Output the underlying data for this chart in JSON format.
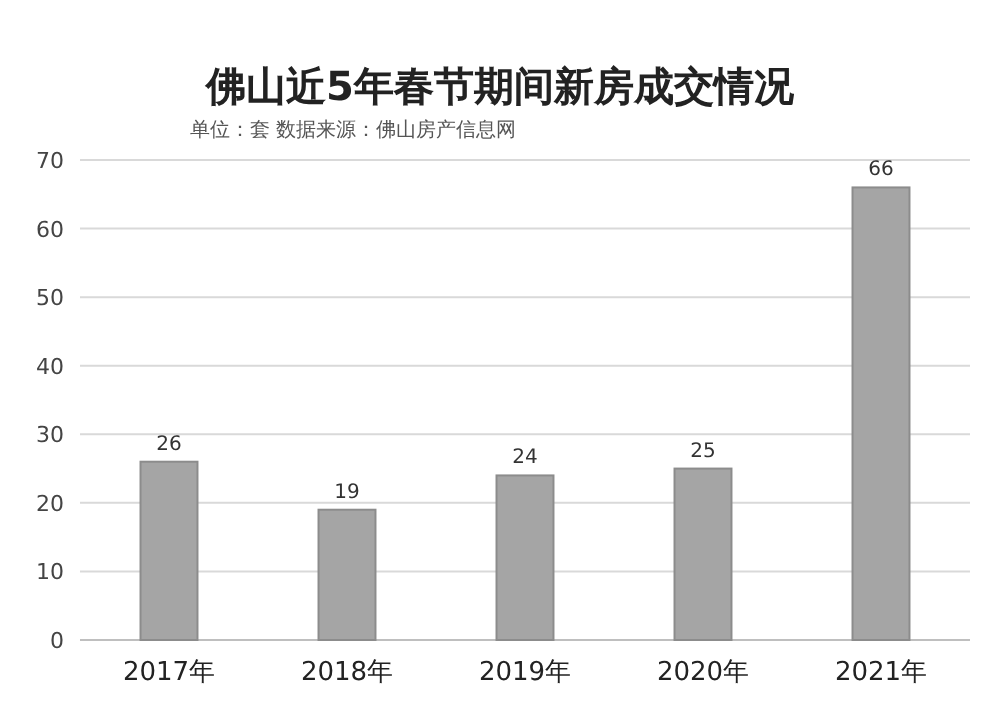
{
  "chart_data": {
    "type": "bar",
    "title": "佛山近5年春节期间新房成交情况",
    "subtitle": "单位：套        数据来源：佛山房产信息网",
    "categories": [
      "2017年",
      "2018年",
      "2019年",
      "2020年",
      "2021年"
    ],
    "values": [
      26,
      19,
      24,
      25,
      66
    ],
    "color": "#a5a5a5",
    "ylim": [
      0,
      70
    ],
    "yticks": [
      0,
      10,
      20,
      30,
      40,
      50,
      60,
      70
    ],
    "grid": "y",
    "data_labels": true
  }
}
